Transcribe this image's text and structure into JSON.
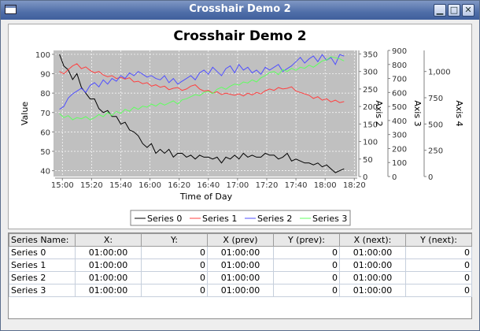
{
  "window": {
    "title": "Crosshair Demo 2",
    "buttons": {
      "minimize": "▁",
      "maximize": "□",
      "close": "✕"
    }
  },
  "chart_data": {
    "type": "line",
    "title": "Crosshair Demo 2",
    "xlabel": "Time of Day",
    "ylabel": "Value",
    "x_ticks": [
      "15:00",
      "15:20",
      "15:40",
      "16:00",
      "16:20",
      "16:40",
      "17:00",
      "17:20",
      "17:40",
      "18:00",
      "18:20"
    ],
    "grid": true,
    "legend_position": "bottom",
    "plot_background": "#c0c0c0",
    "axes": [
      {
        "id": "axis1",
        "label": "Value",
        "side": "left",
        "range": [
          37,
          102
        ],
        "ticks": [
          {
            "v": 40,
            "t": "40"
          },
          {
            "v": 50,
            "t": "50"
          },
          {
            "v": 60,
            "t": "60"
          },
          {
            "v": 70,
            "t": "70"
          },
          {
            "v": 80,
            "t": "80"
          },
          {
            "v": 90,
            "t": "90"
          },
          {
            "v": 100,
            "t": "100"
          }
        ]
      },
      {
        "id": "axis2",
        "label": "Axis 2",
        "side": "right",
        "range": [
          0,
          360
        ],
        "ticks": [
          {
            "v": 0,
            "t": "0"
          },
          {
            "v": 50,
            "t": "50"
          },
          {
            "v": 100,
            "t": "100"
          },
          {
            "v": 150,
            "t": "150"
          },
          {
            "v": 200,
            "t": "200"
          },
          {
            "v": 250,
            "t": "250"
          },
          {
            "v": 300,
            "t": "300"
          },
          {
            "v": 350,
            "t": "350"
          }
        ]
      },
      {
        "id": "axis3",
        "label": "Axis 3",
        "side": "right",
        "range": [
          0,
          900
        ],
        "ticks": [
          {
            "v": 0,
            "t": "0"
          },
          {
            "v": 100,
            "t": "100"
          },
          {
            "v": 200,
            "t": "200"
          },
          {
            "v": 300,
            "t": "300"
          },
          {
            "v": 400,
            "t": "400"
          },
          {
            "v": 500,
            "t": "500"
          },
          {
            "v": 600,
            "t": "600"
          },
          {
            "v": 700,
            "t": "700"
          },
          {
            "v": 800,
            "t": "800"
          },
          {
            "v": 900,
            "t": "900"
          }
        ]
      },
      {
        "id": "axis4",
        "label": "Axis 4",
        "side": "right",
        "range": [
          0,
          1200
        ],
        "ticks": [
          {
            "v": 0,
            "t": "0"
          },
          {
            "v": 250,
            "t": "250"
          },
          {
            "v": 500,
            "t": "500"
          },
          {
            "v": 750,
            "t": "750"
          },
          {
            "v": 1000,
            "t": "1,000"
          }
        ]
      }
    ],
    "series": [
      {
        "name": "Series 0",
        "color": "#000000",
        "x": [
          "14:58",
          "15:01",
          "15:04",
          "15:07",
          "15:10",
          "15:13",
          "15:16",
          "15:19",
          "15:22",
          "15:25",
          "15:28",
          "15:31",
          "15:34",
          "15:37",
          "15:40",
          "15:43",
          "15:46",
          "15:49",
          "15:52",
          "15:55",
          "15:58",
          "16:01",
          "16:04",
          "16:07",
          "16:10",
          "16:13",
          "16:16",
          "16:19",
          "16:22",
          "16:25",
          "16:28",
          "16:31",
          "16:34",
          "16:37",
          "16:40",
          "16:43",
          "16:46",
          "16:49",
          "16:52",
          "16:55",
          "16:58",
          "17:01",
          "17:04",
          "17:07",
          "17:10",
          "17:13",
          "17:16",
          "17:19",
          "17:22",
          "17:25",
          "17:28",
          "17:31",
          "17:34",
          "17:37",
          "17:40",
          "17:43",
          "17:46",
          "17:49",
          "17:52",
          "17:55",
          "17:58",
          "18:01",
          "18:04",
          "18:07",
          "18:10",
          "18:13"
        ],
        "y": [
          100,
          94,
          92,
          87,
          90,
          83,
          80,
          77,
          77,
          72,
          70,
          71,
          68,
          68,
          64,
          65,
          61,
          60,
          58,
          54,
          52,
          54,
          49,
          51,
          49,
          51,
          47,
          49,
          49,
          47,
          48,
          46,
          48,
          47,
          47,
          46,
          47,
          44,
          47,
          46,
          48,
          46,
          49,
          47,
          48,
          47,
          47,
          49,
          48,
          48,
          46,
          47,
          49,
          45,
          46,
          45,
          44,
          44,
          43,
          44,
          42,
          43,
          41,
          39,
          40,
          41
        ]
      },
      {
        "name": "Series 1",
        "color": "#ff4040",
        "x": [
          "14:58",
          "15:01",
          "15:04",
          "15:07",
          "15:10",
          "15:13",
          "15:16",
          "15:19",
          "15:22",
          "15:25",
          "15:28",
          "15:31",
          "15:34",
          "15:37",
          "15:40",
          "15:43",
          "15:46",
          "15:49",
          "15:52",
          "15:55",
          "15:58",
          "16:01",
          "16:04",
          "16:07",
          "16:10",
          "16:13",
          "16:16",
          "16:19",
          "16:22",
          "16:25",
          "16:28",
          "16:31",
          "16:34",
          "16:37",
          "16:40",
          "16:43",
          "16:46",
          "16:49",
          "16:52",
          "16:55",
          "16:58",
          "17:01",
          "17:04",
          "17:07",
          "17:10",
          "17:13",
          "17:16",
          "17:19",
          "17:22",
          "17:25",
          "17:28",
          "17:31",
          "17:34",
          "17:37",
          "17:40",
          "17:43",
          "17:46",
          "17:49",
          "17:52",
          "17:55",
          "17:58",
          "18:01",
          "18:04",
          "18:07",
          "18:10",
          "18:13"
        ],
        "y": [
          300,
          293,
          305,
          316,
          322,
          308,
          313,
          303,
          296,
          300,
          290,
          285,
          288,
          280,
          283,
          278,
          282,
          270,
          272,
          265,
          268,
          258,
          262,
          255,
          258,
          248,
          252,
          254,
          246,
          250,
          258,
          262,
          250,
          244,
          246,
          238,
          242,
          234,
          238,
          235,
          232,
          236,
          230,
          238,
          233,
          240,
          236,
          245,
          250,
          246,
          254,
          250,
          252,
          256,
          244,
          240,
          236,
          232,
          223,
          228,
          218,
          222,
          213,
          218,
          211,
          214
        ]
      },
      {
        "name": "Series 2",
        "color": "#5050ff",
        "x": [
          "14:58",
          "15:01",
          "15:04",
          "15:07",
          "15:10",
          "15:13",
          "15:16",
          "15:19",
          "15:22",
          "15:25",
          "15:28",
          "15:31",
          "15:34",
          "15:37",
          "15:40",
          "15:43",
          "15:46",
          "15:49",
          "15:52",
          "15:55",
          "15:58",
          "16:01",
          "16:04",
          "16:07",
          "16:10",
          "16:13",
          "16:16",
          "16:19",
          "16:22",
          "16:25",
          "16:28",
          "16:31",
          "16:34",
          "16:37",
          "16:40",
          "16:43",
          "16:46",
          "16:49",
          "16:52",
          "16:55",
          "16:58",
          "17:01",
          "17:04",
          "17:07",
          "17:10",
          "17:13",
          "17:16",
          "17:19",
          "17:22",
          "17:25",
          "17:28",
          "17:31",
          "17:34",
          "17:37",
          "17:40",
          "17:43",
          "17:46",
          "17:49",
          "17:52",
          "17:55",
          "17:58",
          "18:01",
          "18:04",
          "18:07",
          "18:10",
          "18:13"
        ],
        "y": [
          480,
          500,
          560,
          590,
          610,
          630,
          600,
          650,
          670,
          640,
          690,
          660,
          700,
          680,
          720,
          700,
          740,
          720,
          750,
          730,
          710,
          720,
          700,
          690,
          720,
          670,
          700,
          660,
          680,
          700,
          720,
          690,
          740,
          760,
          730,
          780,
          750,
          720,
          770,
          790,
          740,
          800,
          760,
          780,
          740,
          760,
          730,
          780,
          760,
          780,
          800,
          750,
          770,
          790,
          820,
          850,
          810,
          840,
          860,
          820,
          870,
          830,
          850,
          800,
          870,
          860
        ]
      },
      {
        "name": "Series 3",
        "color": "#60ff60",
        "x": [
          "14:58",
          "15:01",
          "15:04",
          "15:07",
          "15:10",
          "15:13",
          "15:16",
          "15:19",
          "15:22",
          "15:25",
          "15:28",
          "15:31",
          "15:34",
          "15:37",
          "15:40",
          "15:43",
          "15:46",
          "15:49",
          "15:52",
          "15:55",
          "15:58",
          "16:01",
          "16:04",
          "16:07",
          "16:10",
          "16:13",
          "16:16",
          "16:19",
          "16:22",
          "16:25",
          "16:28",
          "16:31",
          "16:34",
          "16:37",
          "16:40",
          "16:43",
          "16:46",
          "16:49",
          "16:52",
          "16:55",
          "16:58",
          "17:01",
          "17:04",
          "17:07",
          "17:10",
          "17:13",
          "17:16",
          "17:19",
          "17:22",
          "17:25",
          "17:28",
          "17:31",
          "17:34",
          "17:37",
          "17:40",
          "17:43",
          "17:46",
          "17:49",
          "17:52",
          "17:55",
          "17:58",
          "18:01",
          "18:04",
          "18:07",
          "18:10",
          "18:13"
        ],
        "y": [
          600,
          560,
          580,
          540,
          560,
          550,
          570,
          540,
          560,
          590,
          570,
          610,
          580,
          620,
          600,
          640,
          620,
          660,
          640,
          670,
          660,
          690,
          670,
          700,
          680,
          700,
          720,
          690,
          730,
          740,
          760,
          780,
          770,
          800,
          810,
          790,
          830,
          850,
          830,
          860,
          880,
          870,
          900,
          890,
          920,
          900,
          940,
          960,
          990,
          1000,
          970,
          1020,
          1000,
          1030,
          1010,
          1040,
          1030,
          1060,
          1040,
          1070,
          1100,
          1110,
          1140,
          1130,
          1120,
          1100
        ]
      }
    ]
  },
  "table": {
    "headers": [
      "Series Name:",
      "X:",
      "Y:",
      "X (prev)",
      "Y (prev):",
      "X (next):",
      "Y (next):"
    ],
    "rows": [
      [
        "Series 0",
        "01:00:00",
        "0",
        "01:00:00",
        "0",
        "01:00:00",
        "0"
      ],
      [
        "Series 1",
        "01:00:00",
        "0",
        "01:00:00",
        "0",
        "01:00:00",
        "0"
      ],
      [
        "Series 2",
        "01:00:00",
        "0",
        "01:00:00",
        "0",
        "01:00:00",
        "0"
      ],
      [
        "Series 3",
        "01:00:00",
        "0",
        "01:00:00",
        "0",
        "01:00:00",
        "0"
      ]
    ]
  }
}
